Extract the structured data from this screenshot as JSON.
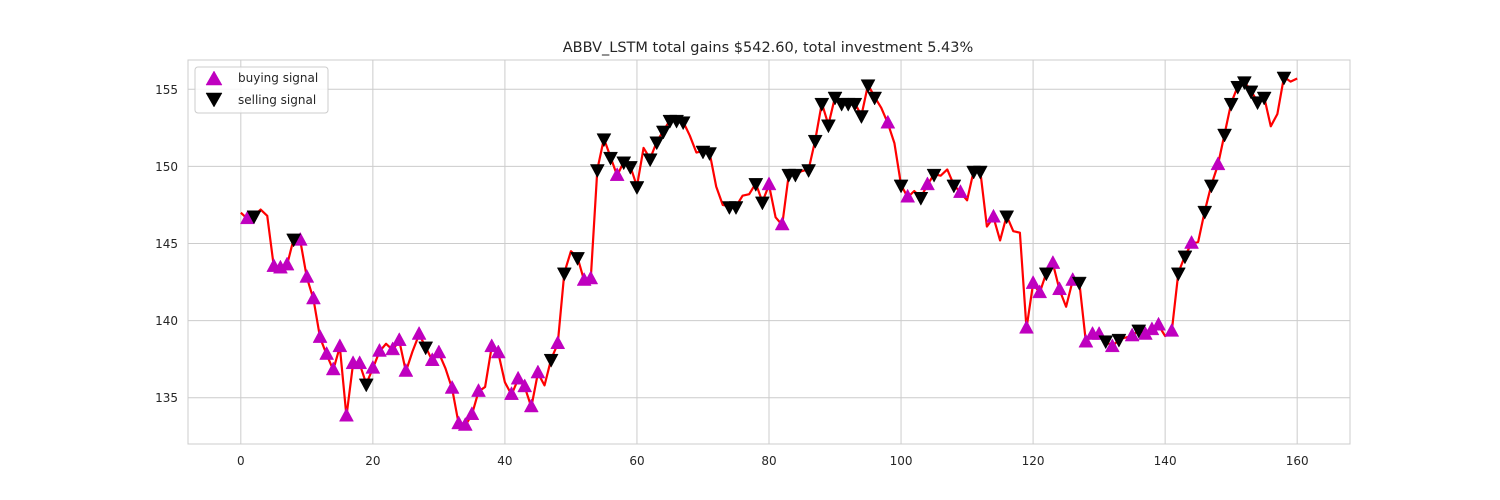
{
  "chart_data": {
    "type": "line",
    "title": "ABBV_LSTM total gains $542.60, total investment 5.43%",
    "xlabel": "",
    "ylabel": "",
    "xlim": [
      -8,
      168
    ],
    "ylim": [
      132.0,
      156.9
    ],
    "x_ticks": [
      0,
      20,
      40,
      60,
      80,
      100,
      120,
      140,
      160
    ],
    "y_ticks": [
      135,
      140,
      145,
      150,
      155
    ],
    "grid": true,
    "legend_position": "upper-left",
    "legend": [
      {
        "label": "buying signal",
        "marker": "triangle-up",
        "color": "#bf00bf"
      },
      {
        "label": "selling signal",
        "marker": "triangle-down",
        "color": "#000000"
      }
    ],
    "line_color": "#ff0000",
    "series": [
      {
        "values": [
          147.0,
          146.6,
          146.8,
          147.2,
          146.8,
          143.5,
          143.4,
          143.6,
          145.3,
          145.2,
          142.8,
          141.4,
          138.9,
          137.8,
          136.8,
          138.3,
          133.8,
          137.2,
          137.2,
          135.9,
          136.9,
          138.0,
          138.5,
          138.1,
          138.7,
          136.7,
          138.0,
          139.1,
          138.3,
          137.4,
          137.9,
          136.9,
          135.6,
          133.3,
          133.2,
          133.9,
          135.4,
          135.7,
          138.3,
          137.9,
          136.0,
          135.2,
          136.2,
          135.7,
          134.4,
          136.6,
          135.8,
          137.5,
          138.5,
          143.1,
          144.5,
          144.1,
          142.6,
          142.7,
          149.8,
          151.8,
          150.6,
          149.4,
          150.3,
          150.0,
          148.7,
          151.2,
          150.5,
          151.6,
          152.3,
          153.0,
          153.0,
          152.9,
          152.0,
          150.9,
          151.0,
          150.9,
          148.7,
          147.5,
          147.4,
          147.4,
          148.1,
          148.2,
          148.9,
          147.7,
          148.8,
          146.7,
          146.2,
          149.5,
          149.5,
          149.7,
          149.8,
          151.7,
          154.1,
          152.7,
          154.5,
          154.1,
          154.1,
          154.1,
          153.3,
          155.3,
          154.5,
          153.8,
          152.8,
          151.5,
          148.8,
          148.0,
          148.4,
          148.0,
          148.8,
          149.5,
          149.4,
          149.8,
          148.8,
          148.3,
          147.8,
          149.7,
          149.7,
          146.1,
          146.7,
          145.2,
          146.8,
          145.8,
          145.7,
          139.5,
          142.4,
          141.8,
          143.1,
          143.7,
          142.0,
          140.9,
          142.6,
          142.5,
          138.6,
          139.1,
          139.1,
          138.7,
          138.3,
          138.8,
          138.9,
          139.0,
          139.4,
          139.1,
          139.4,
          139.7,
          139.0,
          139.3,
          143.1,
          144.2,
          145.0,
          145.1,
          147.1,
          148.8,
          150.1,
          152.1,
          154.1,
          155.2,
          155.5,
          154.9,
          154.2,
          154.5,
          152.6,
          153.4,
          155.8,
          155.5,
          155.7
        ],
        "color": "#ff0000"
      }
    ],
    "buy_signals": [
      {
        "x": 1,
        "y": 146.6
      },
      {
        "x": 5,
        "y": 143.5
      },
      {
        "x": 6,
        "y": 143.4
      },
      {
        "x": 7,
        "y": 143.6
      },
      {
        "x": 9,
        "y": 145.2
      },
      {
        "x": 10,
        "y": 142.8
      },
      {
        "x": 11,
        "y": 141.4
      },
      {
        "x": 12,
        "y": 138.9
      },
      {
        "x": 13,
        "y": 137.8
      },
      {
        "x": 14,
        "y": 136.8
      },
      {
        "x": 15,
        "y": 138.3
      },
      {
        "x": 16,
        "y": 133.8
      },
      {
        "x": 17,
        "y": 137.2
      },
      {
        "x": 18,
        "y": 137.2
      },
      {
        "x": 20,
        "y": 136.9
      },
      {
        "x": 21,
        "y": 138.0
      },
      {
        "x": 23,
        "y": 138.1
      },
      {
        "x": 24,
        "y": 138.7
      },
      {
        "x": 25,
        "y": 136.7
      },
      {
        "x": 27,
        "y": 139.1
      },
      {
        "x": 29,
        "y": 137.4
      },
      {
        "x": 30,
        "y": 137.9
      },
      {
        "x": 32,
        "y": 135.6
      },
      {
        "x": 33,
        "y": 133.3
      },
      {
        "x": 34,
        "y": 133.2
      },
      {
        "x": 35,
        "y": 133.9
      },
      {
        "x": 36,
        "y": 135.4
      },
      {
        "x": 38,
        "y": 138.3
      },
      {
        "x": 39,
        "y": 137.9
      },
      {
        "x": 41,
        "y": 135.2
      },
      {
        "x": 42,
        "y": 136.2
      },
      {
        "x": 43,
        "y": 135.7
      },
      {
        "x": 44,
        "y": 134.4
      },
      {
        "x": 45,
        "y": 136.6
      },
      {
        "x": 48,
        "y": 138.5
      },
      {
        "x": 52,
        "y": 142.6
      },
      {
        "x": 53,
        "y": 142.7
      },
      {
        "x": 57,
        "y": 149.4
      },
      {
        "x": 80,
        "y": 148.8
      },
      {
        "x": 82,
        "y": 146.2
      },
      {
        "x": 98,
        "y": 152.8
      },
      {
        "x": 101,
        "y": 148.0
      },
      {
        "x": 104,
        "y": 148.8
      },
      {
        "x": 109,
        "y": 148.3
      },
      {
        "x": 114,
        "y": 146.7
      },
      {
        "x": 119,
        "y": 139.5
      },
      {
        "x": 120,
        "y": 142.4
      },
      {
        "x": 121,
        "y": 141.8
      },
      {
        "x": 123,
        "y": 143.7
      },
      {
        "x": 124,
        "y": 142.0
      },
      {
        "x": 126,
        "y": 142.6
      },
      {
        "x": 128,
        "y": 138.6
      },
      {
        "x": 129,
        "y": 139.1
      },
      {
        "x": 130,
        "y": 139.1
      },
      {
        "x": 132,
        "y": 138.3
      },
      {
        "x": 135,
        "y": 139.0
      },
      {
        "x": 137,
        "y": 139.1
      },
      {
        "x": 138,
        "y": 139.4
      },
      {
        "x": 139,
        "y": 139.7
      },
      {
        "x": 141,
        "y": 139.3
      },
      {
        "x": 144,
        "y": 145.0
      },
      {
        "x": 148,
        "y": 150.1
      }
    ],
    "sell_signals": [
      {
        "x": 2,
        "y": 146.8
      },
      {
        "x": 8,
        "y": 145.3
      },
      {
        "x": 19,
        "y": 135.9
      },
      {
        "x": 28,
        "y": 138.3
      },
      {
        "x": 47,
        "y": 137.5
      },
      {
        "x": 49,
        "y": 143.1
      },
      {
        "x": 51,
        "y": 144.1
      },
      {
        "x": 54,
        "y": 149.8
      },
      {
        "x": 55,
        "y": 151.8
      },
      {
        "x": 56,
        "y": 150.6
      },
      {
        "x": 58,
        "y": 150.3
      },
      {
        "x": 59,
        "y": 150.0
      },
      {
        "x": 60,
        "y": 148.7
      },
      {
        "x": 62,
        "y": 150.5
      },
      {
        "x": 63,
        "y": 151.6
      },
      {
        "x": 64,
        "y": 152.3
      },
      {
        "x": 65,
        "y": 153.0
      },
      {
        "x": 66,
        "y": 153.0
      },
      {
        "x": 67,
        "y": 152.9
      },
      {
        "x": 70,
        "y": 151.0
      },
      {
        "x": 71,
        "y": 150.9
      },
      {
        "x": 74,
        "y": 147.4
      },
      {
        "x": 75,
        "y": 147.4
      },
      {
        "x": 78,
        "y": 148.9
      },
      {
        "x": 79,
        "y": 147.7
      },
      {
        "x": 83,
        "y": 149.5
      },
      {
        "x": 84,
        "y": 149.5
      },
      {
        "x": 86,
        "y": 149.8
      },
      {
        "x": 87,
        "y": 151.7
      },
      {
        "x": 88,
        "y": 154.1
      },
      {
        "x": 89,
        "y": 152.7
      },
      {
        "x": 90,
        "y": 154.5
      },
      {
        "x": 91,
        "y": 154.1
      },
      {
        "x": 92,
        "y": 154.1
      },
      {
        "x": 93,
        "y": 154.1
      },
      {
        "x": 94,
        "y": 153.3
      },
      {
        "x": 95,
        "y": 155.3
      },
      {
        "x": 96,
        "y": 154.5
      },
      {
        "x": 100,
        "y": 148.8
      },
      {
        "x": 103,
        "y": 148.0
      },
      {
        "x": 105,
        "y": 149.5
      },
      {
        "x": 108,
        "y": 148.8
      },
      {
        "x": 111,
        "y": 149.7
      },
      {
        "x": 112,
        "y": 149.7
      },
      {
        "x": 116,
        "y": 146.8
      },
      {
        "x": 122,
        "y": 143.1
      },
      {
        "x": 127,
        "y": 142.5
      },
      {
        "x": 131,
        "y": 138.7
      },
      {
        "x": 133,
        "y": 138.8
      },
      {
        "x": 136,
        "y": 139.4
      },
      {
        "x": 142,
        "y": 143.1
      },
      {
        "x": 143,
        "y": 144.2
      },
      {
        "x": 146,
        "y": 147.1
      },
      {
        "x": 147,
        "y": 148.8
      },
      {
        "x": 149,
        "y": 152.1
      },
      {
        "x": 150,
        "y": 154.1
      },
      {
        "x": 151,
        "y": 155.2
      },
      {
        "x": 152,
        "y": 155.5
      },
      {
        "x": 153,
        "y": 154.9
      },
      {
        "x": 154,
        "y": 154.2
      },
      {
        "x": 155,
        "y": 154.5
      },
      {
        "x": 158,
        "y": 155.8
      }
    ]
  }
}
